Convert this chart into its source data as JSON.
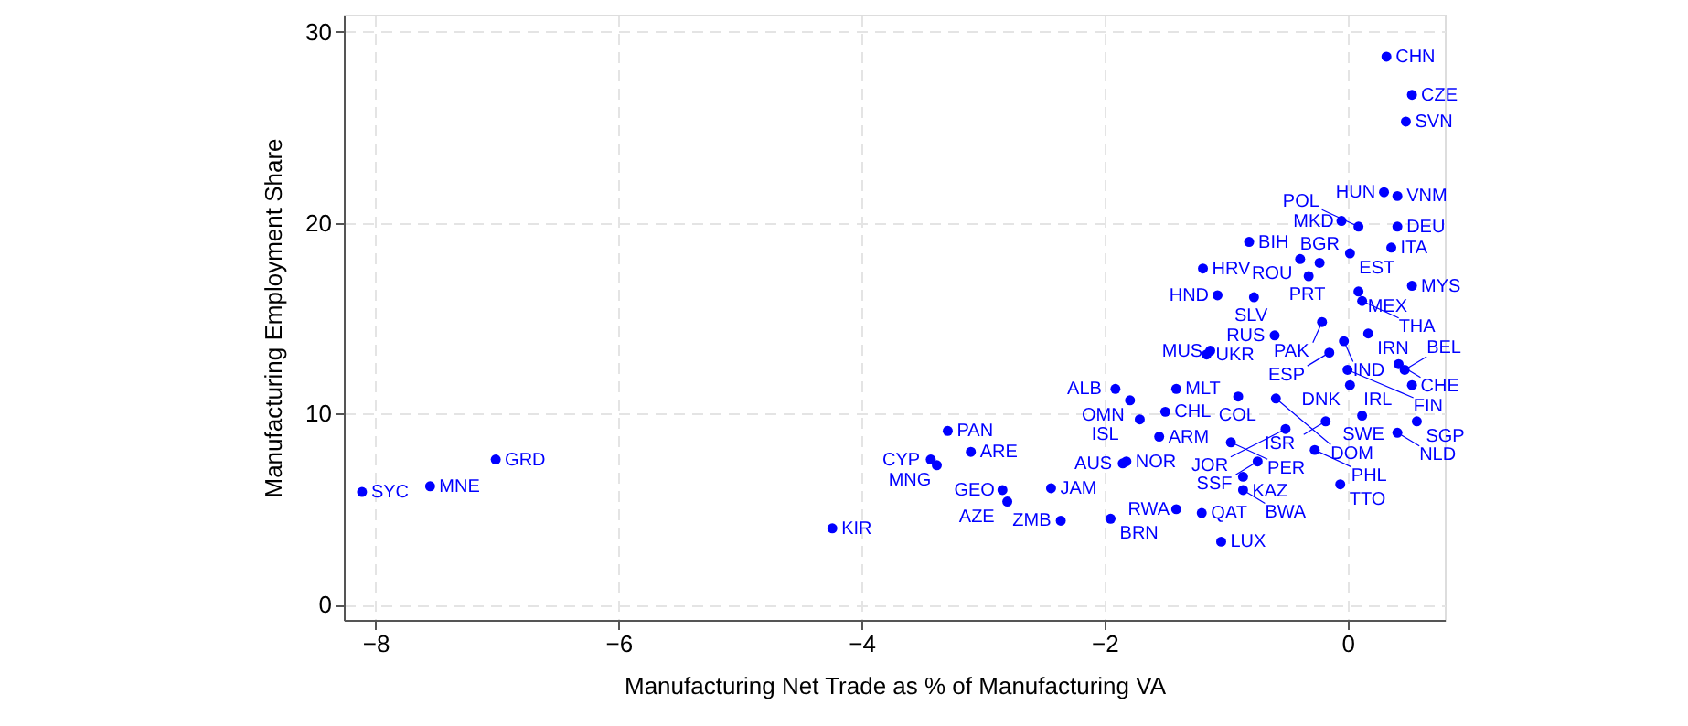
{
  "chart_data": {
    "type": "scatter",
    "xlabel": "Manufacturing Net Trade as % of Manufacturing VA",
    "ylabel": "Manufacturing Employment Share",
    "xlim": [
      -8.26,
      0.8
    ],
    "ylim": [
      -0.8,
      30.9
    ],
    "xticks": [
      -8,
      -6,
      -4,
      -2,
      0
    ],
    "yticks": [
      0,
      10,
      20,
      30
    ],
    "grid": true,
    "marker": "circle",
    "legend": false,
    "series": [
      {
        "color": "#0000ff",
        "x": [
          0.32,
          0.53,
          0.48,
          0.3,
          0.41,
          -0.05,
          0.09,
          0.41,
          0.36,
          0.02,
          -0.81,
          -0.39,
          -0.23,
          -0.32,
          -1.19,
          -1.07,
          -0.77,
          0.09,
          0.53,
          0.12,
          -0.21,
          0.17,
          -0.6,
          -0.03,
          -0.15,
          -1.13,
          -1.16,
          0.42,
          0.47,
          0.53,
          0.02,
          0.0,
          -1.91,
          -1.41,
          -1.79,
          -1.5,
          -1.71,
          -1.55,
          -0.9,
          -0.59,
          -0.18,
          0.12,
          0.57,
          0.41,
          -0.51,
          -0.96,
          -0.27,
          -1.82,
          -1.85,
          -0.74,
          -0.86,
          -0.86,
          -0.06,
          -1.41,
          -1.2,
          -1.04,
          -2.36,
          -1.95,
          -2.44,
          -2.84,
          -2.8,
          -3.29,
          -3.1,
          -3.43,
          -3.38,
          -4.24,
          -7.01,
          -7.55,
          -8.11
        ],
        "values": [
          28.7,
          26.7,
          25.3,
          21.6,
          21.4,
          20.1,
          19.8,
          19.8,
          18.7,
          18.4,
          19.0,
          18.1,
          17.9,
          17.2,
          17.6,
          16.2,
          16.1,
          16.4,
          16.7,
          15.9,
          14.8,
          14.2,
          14.1,
          13.8,
          13.2,
          13.3,
          13.1,
          12.6,
          12.3,
          11.5,
          11.5,
          12.3,
          11.3,
          11.3,
          10.7,
          10.1,
          9.7,
          8.8,
          10.9,
          10.8,
          9.6,
          9.9,
          9.6,
          9.0,
          9.2,
          8.5,
          8.1,
          7.5,
          7.4,
          7.5,
          6.7,
          6.0,
          6.3,
          5.0,
          4.8,
          3.3,
          4.4,
          4.5,
          6.1,
          6.0,
          5.4,
          9.1,
          8.0,
          7.6,
          7.3,
          4.0,
          7.6,
          6.2,
          5.9
        ]
      }
    ],
    "annotations": [
      {
        "text": "CHN",
        "x": 0.32,
        "y": 28.7
      },
      {
        "text": "CZE",
        "x": 0.53,
        "y": 26.7
      },
      {
        "text": "SVN",
        "x": 0.48,
        "y": 25.3
      },
      {
        "text": "HUN",
        "x": 0.3,
        "y": 21.6
      },
      {
        "text": "VNM",
        "x": 0.41,
        "y": 21.4
      },
      {
        "text": "MKD",
        "x": -0.05,
        "y": 20.1
      },
      {
        "text": "POL",
        "x": 0.09,
        "y": 19.8
      },
      {
        "text": "DEU",
        "x": 0.41,
        "y": 19.8
      },
      {
        "text": "ITA",
        "x": 0.36,
        "y": 18.7
      },
      {
        "text": "EST",
        "x": 0.02,
        "y": 18.4
      },
      {
        "text": "BIH",
        "x": -0.81,
        "y": 19.0
      },
      {
        "text": "ROU",
        "x": -0.39,
        "y": 18.1
      },
      {
        "text": "BGR",
        "x": -0.23,
        "y": 17.9
      },
      {
        "text": "PRT",
        "x": -0.32,
        "y": 17.2
      },
      {
        "text": "HRV",
        "x": -1.19,
        "y": 17.6
      },
      {
        "text": "HND",
        "x": -1.07,
        "y": 16.2
      },
      {
        "text": "SLV",
        "x": -0.77,
        "y": 16.1
      },
      {
        "text": "MEX",
        "x": 0.09,
        "y": 16.4
      },
      {
        "text": "MYS",
        "x": 0.53,
        "y": 16.7
      },
      {
        "text": "THA",
        "x": 0.12,
        "y": 15.9
      },
      {
        "text": "PAK",
        "x": -0.21,
        "y": 14.8
      },
      {
        "text": "IRN",
        "x": 0.17,
        "y": 14.2
      },
      {
        "text": "RUS",
        "x": -0.6,
        "y": 14.1
      },
      {
        "text": "IND",
        "x": -0.03,
        "y": 13.8
      },
      {
        "text": "ESP",
        "x": -0.15,
        "y": 13.2
      },
      {
        "text": "MUS",
        "x": -1.13,
        "y": 13.3
      },
      {
        "text": "UKR",
        "x": -1.16,
        "y": 13.1
      },
      {
        "text": "CHE",
        "x": 0.42,
        "y": 12.6
      },
      {
        "text": "BEL",
        "x": 0.47,
        "y": 12.3
      },
      {
        "text": "IRL",
        "x": 0.53,
        "y": 11.5
      },
      {
        "text": "DNK",
        "x": 0.02,
        "y": 11.5
      },
      {
        "text": "FIN",
        "x": 0.0,
        "y": 12.3
      },
      {
        "text": "ALB",
        "x": -1.91,
        "y": 11.3
      },
      {
        "text": "MLT",
        "x": -1.41,
        "y": 11.3
      },
      {
        "text": "OMN",
        "x": -1.79,
        "y": 10.7
      },
      {
        "text": "CHL",
        "x": -1.5,
        "y": 10.1
      },
      {
        "text": "ISL",
        "x": -1.71,
        "y": 9.7
      },
      {
        "text": "ARM",
        "x": -1.55,
        "y": 8.8
      },
      {
        "text": "COL",
        "x": -0.9,
        "y": 10.9
      },
      {
        "text": "DOM",
        "x": -0.59,
        "y": 10.8
      },
      {
        "text": "ISR",
        "x": -0.18,
        "y": 9.6
      },
      {
        "text": "SWE",
        "x": 0.12,
        "y": 9.9
      },
      {
        "text": "SGP",
        "x": 0.57,
        "y": 9.6
      },
      {
        "text": "NLD",
        "x": 0.41,
        "y": 9.0
      },
      {
        "text": "JOR",
        "x": -0.51,
        "y": 9.2
      },
      {
        "text": "PER",
        "x": -0.96,
        "y": 8.5
      },
      {
        "text": "PHL",
        "x": -0.27,
        "y": 8.1
      },
      {
        "text": "NOR",
        "x": -1.82,
        "y": 7.5
      },
      {
        "text": "AUS",
        "x": -1.85,
        "y": 7.4
      },
      {
        "text": "SSF",
        "x": -0.74,
        "y": 7.5
      },
      {
        "text": "KAZ",
        "x": -0.86,
        "y": 6.7
      },
      {
        "text": "BWA",
        "x": -0.86,
        "y": 6.0
      },
      {
        "text": "TTO",
        "x": -0.06,
        "y": 6.3
      },
      {
        "text": "RWA",
        "x": -1.41,
        "y": 5.0
      },
      {
        "text": "QAT",
        "x": -1.2,
        "y": 4.8
      },
      {
        "text": "LUX",
        "x": -1.04,
        "y": 3.3
      },
      {
        "text": "ZMB",
        "x": -2.36,
        "y": 4.4
      },
      {
        "text": "BRN",
        "x": -1.95,
        "y": 4.5
      },
      {
        "text": "JAM",
        "x": -2.44,
        "y": 6.1
      },
      {
        "text": "GEO",
        "x": -2.84,
        "y": 6.0
      },
      {
        "text": "AZE",
        "x": -2.8,
        "y": 5.4
      },
      {
        "text": "PAN",
        "x": -3.29,
        "y": 9.1
      },
      {
        "text": "ARE",
        "x": -3.1,
        "y": 8.0
      },
      {
        "text": "CYP",
        "x": -3.43,
        "y": 7.6
      },
      {
        "text": "MNG",
        "x": -3.38,
        "y": 7.3
      },
      {
        "text": "KIR",
        "x": -4.24,
        "y": 4.0
      },
      {
        "text": "GRD",
        "x": -7.01,
        "y": 7.6
      },
      {
        "text": "MNE",
        "x": -7.55,
        "y": 6.2
      },
      {
        "text": "SYC",
        "x": -8.11,
        "y": 5.9
      }
    ]
  }
}
